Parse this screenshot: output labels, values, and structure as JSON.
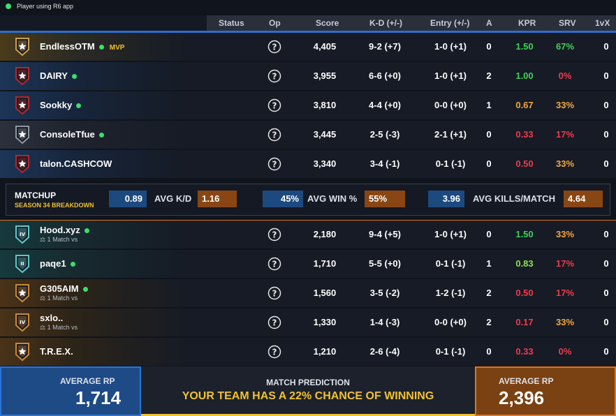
{
  "topbar": {
    "status_text": "Player using R6 app"
  },
  "columns": [
    "Status",
    "Op",
    "Score",
    "K-D (+/-)",
    "Entry (+/-)",
    "A",
    "KPR",
    "SRV",
    "1vX"
  ],
  "team_a": [
    {
      "name": "EndlessOTM",
      "online": true,
      "badge": "MVP",
      "score": "4,405",
      "kd": "9-2 (+7)",
      "entry": "1-0 (+1)",
      "assists": "0",
      "kpr": "1.50",
      "srv": "67%",
      "onevx": "0",
      "kpr_color": "green",
      "srv_color": "green",
      "rank_color": "#c8a050"
    },
    {
      "name": "DAIRY",
      "online": true,
      "score": "3,955",
      "kd": "6-6 (+0)",
      "entry": "1-0 (+1)",
      "assists": "2",
      "kpr": "1.00",
      "srv": "0%",
      "onevx": "0",
      "kpr_color": "green",
      "srv_color": "red",
      "rank_color": "#b0272f"
    },
    {
      "name": "Sookky",
      "online": true,
      "score": "3,810",
      "kd": "4-4 (+0)",
      "entry": "0-0 (+0)",
      "assists": "1",
      "kpr": "0.67",
      "srv": "33%",
      "onevx": "0",
      "kpr_color": "orange",
      "srv_color": "orange",
      "rank_color": "#b0272f"
    },
    {
      "name": "ConsoleTfue",
      "online": true,
      "score": "3,445",
      "kd": "2-5 (-3)",
      "entry": "2-1 (+1)",
      "assists": "0",
      "kpr": "0.33",
      "srv": "17%",
      "onevx": "0",
      "kpr_color": "red",
      "srv_color": "red",
      "rank_color": "#8e95a3"
    },
    {
      "name": "talon.CASHCOW",
      "online": false,
      "score": "3,340",
      "kd": "3-4 (-1)",
      "entry": "0-1 (-1)",
      "assists": "0",
      "kpr": "0.50",
      "srv": "33%",
      "onevx": "0",
      "kpr_color": "red",
      "srv_color": "orange",
      "rank_color": "#b0272f"
    }
  ],
  "matchup": {
    "title": "MATCHUP",
    "subtitle": "SEASON 34 BREAKDOWN",
    "stats": [
      {
        "label": "AVG K/D",
        "ours": "0.89",
        "theirs": "1.16"
      },
      {
        "label": "AVG WIN %",
        "ours": "45%",
        "theirs": "55%"
      },
      {
        "label": "AVG KILLS/MATCH",
        "ours": "3.96",
        "theirs": "4.64"
      }
    ]
  },
  "team_b": [
    {
      "name": "Hood.xyz",
      "online": true,
      "sub": "1 Match vs",
      "rank_label": "IV",
      "score": "2,180",
      "kd": "9-4 (+5)",
      "entry": "1-0 (+1)",
      "assists": "0",
      "kpr": "1.50",
      "srv": "33%",
      "onevx": "0",
      "kpr_color": "green",
      "srv_color": "orange",
      "rank_color": "#5fc7c9"
    },
    {
      "name": "paqe1",
      "online": true,
      "rank_label": "II",
      "score": "1,710",
      "kd": "5-5 (+0)",
      "entry": "0-1 (-1)",
      "assists": "1",
      "kpr": "0.83",
      "srv": "17%",
      "onevx": "0",
      "kpr_color": "lgreen",
      "srv_color": "red",
      "rank_color": "#5fc7c9"
    },
    {
      "name": "G305AIM",
      "online": true,
      "sub": "1 Match vs",
      "score": "1,560",
      "kd": "3-5 (-2)",
      "entry": "1-2 (-1)",
      "assists": "2",
      "kpr": "0.50",
      "srv": "17%",
      "onevx": "0",
      "kpr_color": "red",
      "srv_color": "red",
      "rank_color": "#c8883c"
    },
    {
      "name": "sxlo..",
      "online": false,
      "sub": "1 Match vs",
      "rank_label": "IV",
      "score": "1,330",
      "kd": "1-4 (-3)",
      "entry": "0-0 (+0)",
      "assists": "2",
      "kpr": "0.17",
      "srv": "33%",
      "onevx": "0",
      "kpr_color": "red",
      "srv_color": "orange",
      "rank_color": "#c8883c"
    },
    {
      "name": "T.R.E.X.",
      "online": false,
      "score": "1,210",
      "kd": "2-6 (-4)",
      "entry": "0-1 (-1)",
      "assists": "0",
      "kpr": "0.33",
      "srv": "0%",
      "onevx": "0",
      "kpr_color": "red",
      "srv_color": "red",
      "rank_color": "#c8883c"
    }
  ],
  "footer": {
    "left_caption": "AVERAGE RP",
    "left_value": "1,714",
    "mid_caption": "MATCH PREDICTION",
    "mid_text": "YOUR TEAM HAS A 22% CHANCE OF WINNING",
    "right_caption": "AVERAGE RP",
    "right_value": "2,396"
  },
  "icons": {
    "status": "online-dot-icon",
    "operator": "question-circle-icon",
    "rank": "rank-shield-icon",
    "vs": "versus-icon"
  }
}
